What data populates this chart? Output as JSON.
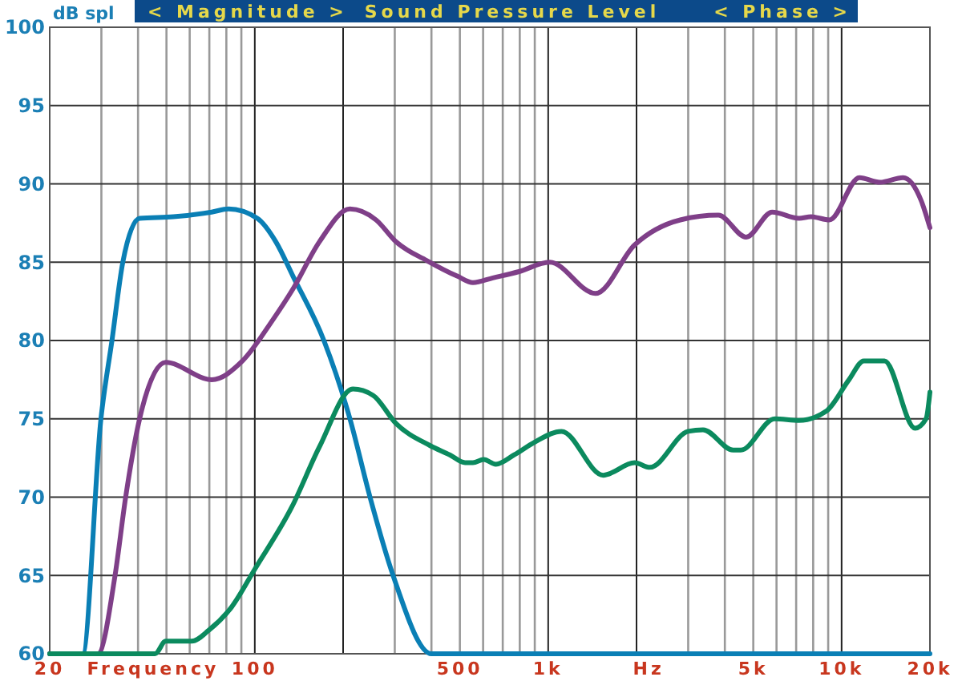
{
  "chart_data": {
    "type": "line",
    "title": "Sound Pressure Level",
    "ylabel": "dB spl",
    "xlabel": "Frequency",
    "annotations": [
      "< Magnitude >",
      "< Phase >",
      "Hz"
    ],
    "log": "x",
    "grid": true,
    "line_style": "solid",
    "xlim": [
      20,
      20000
    ],
    "ylim": [
      60,
      100
    ],
    "yticks": [
      60,
      65,
      70,
      75,
      80,
      85,
      90,
      95,
      100
    ],
    "xticks": [
      {
        "value": 20,
        "label": "20"
      },
      {
        "value": 30,
        "label": null
      },
      {
        "value": 40,
        "label": null
      },
      {
        "value": 50,
        "label": null
      },
      {
        "value": 60,
        "label": null
      },
      {
        "value": 70,
        "label": null
      },
      {
        "value": 80,
        "label": null
      },
      {
        "value": 90,
        "label": null
      },
      {
        "value": 100,
        "label": "100"
      },
      {
        "value": 200,
        "label": null
      },
      {
        "value": 300,
        "label": null
      },
      {
        "value": 400,
        "label": null
      },
      {
        "value": 500,
        "label": "500"
      },
      {
        "value": 600,
        "label": null
      },
      {
        "value": 700,
        "label": null
      },
      {
        "value": 800,
        "label": null
      },
      {
        "value": 900,
        "label": null
      },
      {
        "value": 1000,
        "label": "1k"
      },
      {
        "value": 2000,
        "label": null
      },
      {
        "value": 3000,
        "label": null
      },
      {
        "value": 4000,
        "label": null
      },
      {
        "value": 5000,
        "label": "5k"
      },
      {
        "value": 6000,
        "label": null
      },
      {
        "value": 7000,
        "label": null
      },
      {
        "value": 8000,
        "label": null
      },
      {
        "value": 9000,
        "label": null
      },
      {
        "value": 10000,
        "label": "10k"
      },
      {
        "value": 20000,
        "label": "20k"
      }
    ],
    "series": [
      {
        "color": "#0a7fb5",
        "x": [
          20,
          25.9,
          29.9,
          32.6,
          35.5,
          40.5,
          52.8,
          71.3,
          81.4,
          102,
          118,
          135,
          172,
          211,
          247,
          296,
          400,
          20000
        ],
        "values": [
          60,
          60,
          75,
          80,
          85,
          87.8,
          87.9,
          88.2,
          88.4,
          87.8,
          86.3,
          84.1,
          80,
          75,
          70,
          65,
          60,
          60
        ]
      },
      {
        "color": "#7f3f88",
        "x": [
          20,
          29.2,
          33.4,
          36.3,
          40.5,
          49.7,
          71.3,
          90.8,
          115,
          135,
          166,
          211,
          259,
          303,
          386,
          491,
          554,
          648,
          795,
          1012,
          1450,
          1970,
          2820,
          3800,
          4730,
          5800,
          7160,
          7870,
          9090,
          11500,
          13500,
          16200,
          18700,
          20000
        ],
        "values": [
          60,
          60,
          65,
          70,
          75,
          78.6,
          77.5,
          78.7,
          81.3,
          83.3,
          86.3,
          88.4,
          87.7,
          86.3,
          85.1,
          84.1,
          83.7,
          84.0,
          84.4,
          85.0,
          83.0,
          86.1,
          87.7,
          88.0,
          86.6,
          88.2,
          87.8,
          87.9,
          87.7,
          90.4,
          90.1,
          90.4,
          88.9,
          87.2
        ]
      },
      {
        "color": "#0b8a5e",
        "x": [
          20,
          45.7,
          49.7,
          61,
          69.7,
          83.5,
          100,
          134,
          166,
          216,
          253,
          303,
          395,
          462,
          521,
          554,
          603,
          663,
          766,
          897,
          1110,
          1540,
          1970,
          2220,
          3000,
          3370,
          4270,
          4530,
          5920,
          7160,
          8880,
          10600,
          11900,
          14000,
          17800,
          19400,
          20000
        ],
        "values": [
          60,
          60,
          60.8,
          60.8,
          61.5,
          63.0,
          65.4,
          69.4,
          73.2,
          76.9,
          76.5,
          74.7,
          73.3,
          72.7,
          72.2,
          72.2,
          72.4,
          72.1,
          72.7,
          73.5,
          74.2,
          71.4,
          72.2,
          71.9,
          74.2,
          74.3,
          73.0,
          73.0,
          75.0,
          74.9,
          75.5,
          77.5,
          78.7,
          78.7,
          74.4,
          75.0,
          76.7
        ]
      }
    ]
  }
}
